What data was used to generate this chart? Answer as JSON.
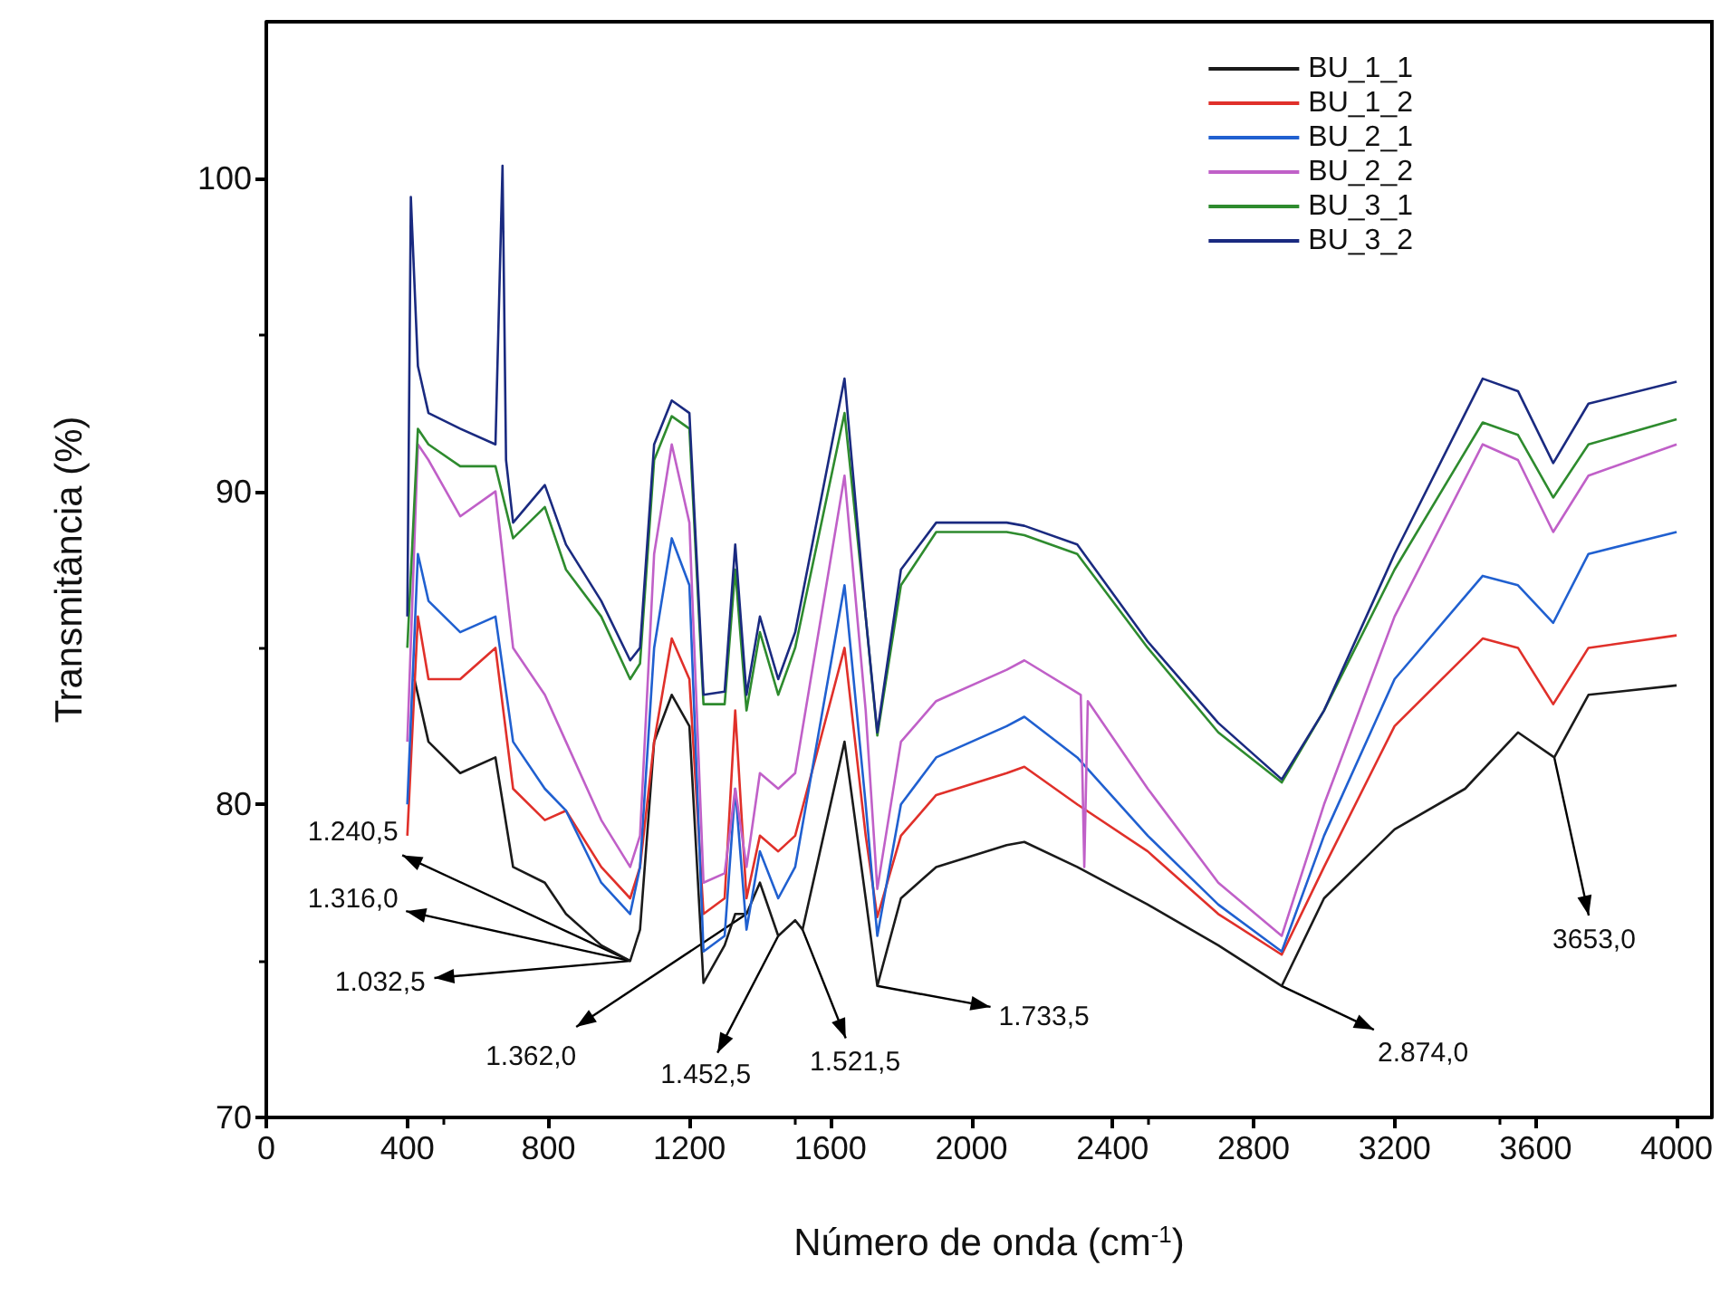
{
  "chart_data": {
    "type": "line",
    "xlabel": "Número de onda (cm$^{-1}$)",
    "ylabel": "Transmitância (%)",
    "xlim": [
      0,
      4100
    ],
    "xticks": [
      0,
      400,
      800,
      1200,
      1600,
      2000,
      2400,
      2800,
      3200,
      3600,
      4000
    ],
    "ylim": [
      70,
      105
    ],
    "yticks": [
      70,
      80,
      90,
      100
    ],
    "grid": false,
    "legend": "top right",
    "marker": "none",
    "line_style": "solid",
    "series": [
      {
        "name": "BU_1_1",
        "color": "#1a1a1a",
        "x": [
          420,
          460,
          550,
          650,
          700,
          790,
          850,
          950,
          1032,
          1060,
          1100,
          1150,
          1200,
          1240,
          1300,
          1330,
          1362,
          1400,
          1452,
          1500,
          1521,
          1640,
          1700,
          1733,
          1800,
          1900,
          2100,
          2150,
          2300,
          2500,
          2700,
          2880,
          3000,
          3200,
          3400,
          3550,
          3653,
          3750,
          4000
        ],
        "values": [
          84,
          82,
          81,
          81.5,
          78,
          77.5,
          76.5,
          75.5,
          75,
          76,
          82,
          83.5,
          82.5,
          74.3,
          75.5,
          76.5,
          76.5,
          77.5,
          75.8,
          76.3,
          76,
          82,
          77,
          74.2,
          77,
          78,
          78.7,
          78.8,
          78,
          76.8,
          75.5,
          74.2,
          77,
          79.2,
          80.5,
          82.3,
          81.5,
          83.5,
          83.8
        ]
      },
      {
        "name": "BU_1_2",
        "color": "#e0302a",
        "x": [
          400,
          430,
          460,
          550,
          650,
          700,
          790,
          850,
          950,
          1032,
          1060,
          1100,
          1150,
          1200,
          1240,
          1300,
          1330,
          1362,
          1400,
          1452,
          1500,
          1640,
          1700,
          1733,
          1800,
          1900,
          2100,
          2150,
          2300,
          2500,
          2700,
          2880,
          3000,
          3200,
          3450,
          3550,
          3650,
          3750,
          4000
        ],
        "values": [
          79,
          86,
          84,
          84,
          85,
          80.5,
          79.5,
          79.8,
          78,
          77,
          78,
          82,
          85.3,
          84,
          76.5,
          77,
          83,
          77,
          79,
          78.5,
          79,
          85,
          79,
          76.4,
          79,
          80.3,
          81,
          81.2,
          80,
          78.5,
          76.5,
          75.2,
          78,
          82.5,
          85.3,
          85,
          83.2,
          85,
          85.4
        ]
      },
      {
        "name": "BU_2_1",
        "color": "#2060d0",
        "x": [
          400,
          430,
          460,
          550,
          650,
          700,
          790,
          850,
          950,
          1032,
          1060,
          1100,
          1150,
          1200,
          1240,
          1300,
          1330,
          1362,
          1400,
          1452,
          1500,
          1640,
          1700,
          1733,
          1800,
          1900,
          2100,
          2150,
          2300,
          2500,
          2700,
          2880,
          3000,
          3200,
          3450,
          3550,
          3650,
          3750,
          4000
        ],
        "values": [
          80,
          88,
          86.5,
          85.5,
          86,
          82,
          80.5,
          79.8,
          77.5,
          76.5,
          78,
          85,
          88.5,
          87,
          75.3,
          75.8,
          80.5,
          76,
          78.5,
          77,
          78,
          87,
          80,
          75.8,
          80,
          81.5,
          82.5,
          82.8,
          81.5,
          79,
          76.8,
          75.3,
          79,
          84,
          87.3,
          87,
          85.8,
          88,
          88.7
        ]
      },
      {
        "name": "BU_2_2",
        "color": "#c060c8",
        "x": [
          400,
          430,
          460,
          550,
          650,
          700,
          790,
          850,
          950,
          1032,
          1060,
          1100,
          1150,
          1200,
          1240,
          1300,
          1330,
          1362,
          1400,
          1452,
          1500,
          1640,
          1700,
          1733,
          1800,
          1900,
          2100,
          2150,
          2310,
          2320,
          2330,
          2500,
          2700,
          2880,
          3000,
          3200,
          3450,
          3550,
          3650,
          3750,
          4000
        ],
        "values": [
          82,
          91.5,
          91,
          89.2,
          90,
          85,
          83.5,
          82,
          79.5,
          78,
          79,
          88,
          91.5,
          89,
          77.5,
          77.8,
          80.5,
          78,
          81,
          80.5,
          81,
          90.5,
          83,
          77.3,
          82,
          83.3,
          84.3,
          84.6,
          83.5,
          78,
          83.3,
          80.5,
          77.5,
          75.8,
          80,
          86,
          91.5,
          91,
          88.7,
          90.5,
          91.5
        ]
      },
      {
        "name": "BU_3_1",
        "color": "#2e8b2e",
        "x": [
          400,
          430,
          460,
          550,
          650,
          700,
          790,
          850,
          950,
          1032,
          1060,
          1100,
          1150,
          1200,
          1240,
          1300,
          1330,
          1362,
          1400,
          1452,
          1500,
          1640,
          1700,
          1733,
          1800,
          1900,
          2100,
          2150,
          2300,
          2500,
          2700,
          2880,
          3000,
          3200,
          3450,
          3550,
          3650,
          3750,
          4000
        ],
        "values": [
          85,
          92,
          91.5,
          90.8,
          90.8,
          88.5,
          89.5,
          87.5,
          86,
          84,
          84.5,
          91,
          92.4,
          92,
          83.2,
          83.2,
          87.5,
          83,
          85.5,
          83.5,
          85,
          92.5,
          86,
          82.2,
          87,
          88.7,
          88.7,
          88.6,
          88,
          85,
          82.3,
          80.7,
          83,
          87.5,
          92.2,
          91.8,
          89.8,
          91.5,
          92.3
        ]
      },
      {
        "name": "BU_3_2",
        "color": "#1a2a80",
        "x": [
          400,
          410,
          430,
          460,
          550,
          650,
          670,
          680,
          700,
          790,
          850,
          950,
          1032,
          1060,
          1100,
          1150,
          1200,
          1240,
          1300,
          1330,
          1362,
          1400,
          1452,
          1500,
          1640,
          1700,
          1733,
          1800,
          1900,
          2100,
          2150,
          2300,
          2500,
          2700,
          2880,
          3000,
          3200,
          3450,
          3550,
          3650,
          3750,
          4000
        ],
        "values": [
          86,
          99.4,
          94,
          92.5,
          92,
          91.5,
          100.4,
          91,
          89,
          90.2,
          88.3,
          86.5,
          84.6,
          85,
          91.5,
          92.9,
          92.5,
          83.5,
          83.6,
          88.3,
          83.5,
          86,
          84,
          85.5,
          93.6,
          86,
          82.3,
          87.5,
          89,
          89,
          88.9,
          88.3,
          85.2,
          82.6,
          80.8,
          83,
          88,
          93.6,
          93.2,
          90.9,
          92.8,
          93.5
        ]
      }
    ],
    "annotations": [
      {
        "text": "1.240,5",
        "x": 1032,
        "y": 75
      },
      {
        "text": "1.316,0",
        "x": 1032,
        "y": 75
      },
      {
        "text": "1.032,5",
        "x": 1032,
        "y": 75
      },
      {
        "text": "1.362,0",
        "x": 1362,
        "y": 76.5
      },
      {
        "text": "1.452,5",
        "x": 1452,
        "y": 75.8
      },
      {
        "text": "1.521,5",
        "x": 1521,
        "y": 76
      },
      {
        "text": "1.733,5",
        "x": 1733,
        "y": 74.2
      },
      {
        "text": "2.874,0",
        "x": 2880,
        "y": 74.2
      },
      {
        "text": "3653,0",
        "x": 3653,
        "y": 81.5
      }
    ]
  }
}
